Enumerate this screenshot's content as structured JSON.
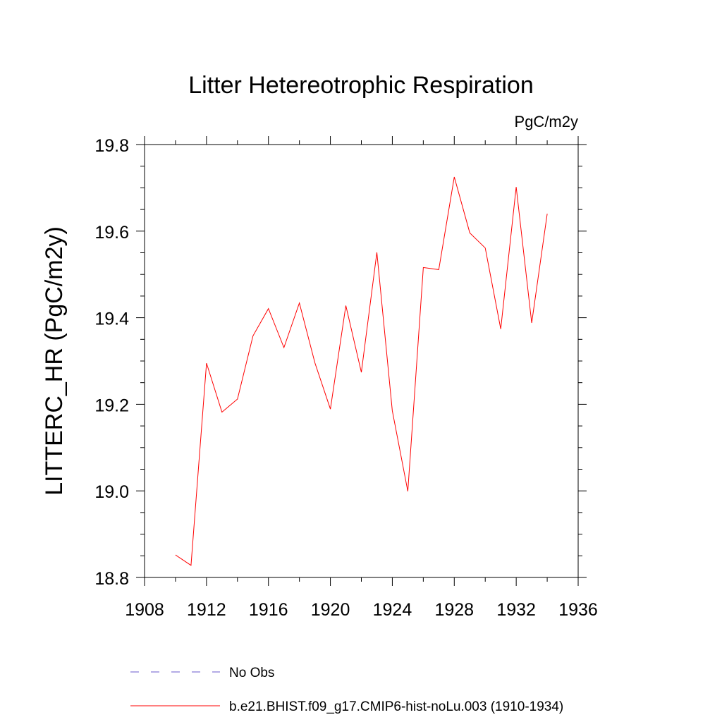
{
  "chart_data": {
    "type": "line",
    "title": "Litter Hetereotrophic Respiration",
    "units_label": "PgC/m2y",
    "xlabel": "",
    "ylabel": "LITTERC_HR  (PgC/m2y)",
    "xlim": [
      1908,
      1936
    ],
    "ylim": [
      18.8,
      19.8
    ],
    "x_ticks": [
      1908,
      1912,
      1916,
      1920,
      1924,
      1928,
      1932,
      1936
    ],
    "x_tick_labels": [
      "1908",
      "1912",
      "1916",
      "1920",
      "1924",
      "1928",
      "1932",
      "1936"
    ],
    "y_ticks": [
      18.8,
      19.0,
      19.2,
      19.4,
      19.6,
      19.8
    ],
    "y_tick_labels": [
      "18.8",
      "19.0",
      "19.2",
      "19.4",
      "19.6",
      "19.8"
    ],
    "grid": false,
    "legend_position": "bottom",
    "series": [
      {
        "name": "b.e21.BHIST.f09_g17.CMIP6-hist-noLu.003 (1910-1934)",
        "color": "#ff0000",
        "style": "solid",
        "x": [
          1910,
          1911,
          1912,
          1913,
          1914,
          1915,
          1916,
          1917,
          1918,
          1919,
          1920,
          1921,
          1922,
          1923,
          1924,
          1925,
          1926,
          1927,
          1928,
          1929,
          1930,
          1931,
          1932,
          1933,
          1934
        ],
        "y": [
          18.852,
          18.828,
          19.295,
          19.182,
          19.212,
          19.358,
          19.421,
          19.331,
          19.434,
          19.296,
          19.189,
          19.428,
          19.274,
          19.551,
          19.185,
          18.999,
          19.516,
          19.511,
          19.725,
          19.596,
          19.561,
          19.374,
          19.702,
          19.388,
          19.64
        ]
      }
    ],
    "legend": [
      {
        "label": "No Obs",
        "color": "#6a5acd",
        "style": "dashed"
      },
      {
        "label": "b.e21.BHIST.f09_g17.CMIP6-hist-noLu.003 (1910-1934)",
        "color": "#ff0000",
        "style": "solid"
      }
    ]
  }
}
